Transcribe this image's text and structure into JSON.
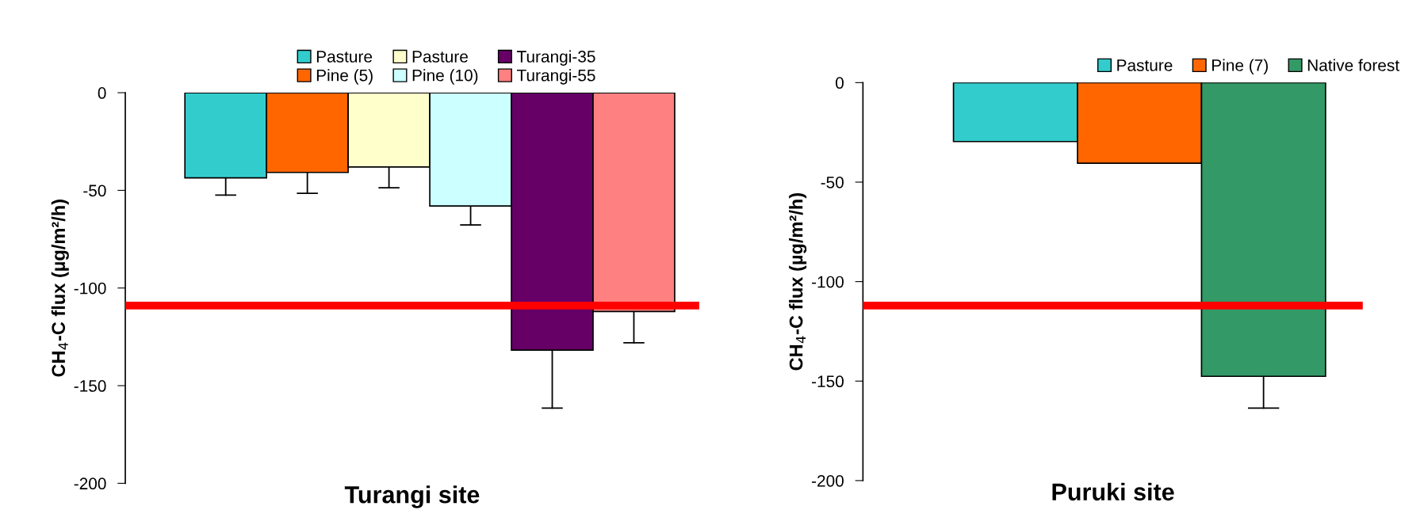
{
  "chart_data": [
    {
      "type": "bar",
      "xlabel": "Turangi site",
      "ylabel": "CH$_{4}$-C flux (µg/m²/h)",
      "categories": [
        null
      ],
      "ylim": [
        -200,
        0
      ],
      "yticks": [
        0,
        -50,
        -100,
        -150,
        -200
      ],
      "legend": "top",
      "series": [
        {
          "name": "Pasture",
          "color": "#33cccc",
          "values": [
            -43.6
          ],
          "errors": [
            [
              -52.4,
              -43.6
            ]
          ]
        },
        {
          "name": "Pine (5)",
          "color": "#ff6600",
          "values": [
            -40.8
          ],
          "errors": [
            [
              -51.5,
              -40.8
            ]
          ]
        },
        {
          "name": "Pasture",
          "color": "#ffffcc",
          "values": [
            -38
          ],
          "errors": [
            [
              -48.7,
              -38
            ]
          ]
        },
        {
          "name": "Pine (10)",
          "color": "#ccffff",
          "values": [
            -58
          ],
          "errors": [
            [
              -67.7,
              -58
            ]
          ]
        },
        {
          "name": "Turangi-35",
          "color": "#660066",
          "values": [
            -131.8
          ],
          "errors": [
            [
              -161.5,
              -131.8
            ]
          ]
        },
        {
          "name": "Turangi-55",
          "color": "#ff8080",
          "values": [
            -112
          ],
          "errors": [
            [
              -128,
              -112
            ]
          ]
        }
      ],
      "ref_lines": [
        {
          "axis": "y",
          "value": -109,
          "color": "#ff0000"
        }
      ]
    },
    {
      "type": "bar",
      "xlabel": "Puruki site",
      "ylabel": "CH$_{4}$-C flux (µg/m²/h)",
      "categories": [
        null
      ],
      "ylim": [
        -200,
        0
      ],
      "yticks": [
        0,
        -50,
        -100,
        -150,
        -200
      ],
      "legend": "top right",
      "series": [
        {
          "name": "Pasture",
          "color": "#33cccc",
          "values": [
            -29.6
          ]
        },
        {
          "name": "Pine (7)",
          "color": "#ff6600",
          "values": [
            -40.5
          ]
        },
        {
          "name": "Native forest",
          "color": "#339966",
          "values": [
            -147.6
          ],
          "errors": [
            [
              -163.6,
              -147.6
            ]
          ]
        }
      ],
      "ref_lines": [
        {
          "axis": "y",
          "value": -112,
          "color": "#ff0000"
        }
      ]
    }
  ]
}
